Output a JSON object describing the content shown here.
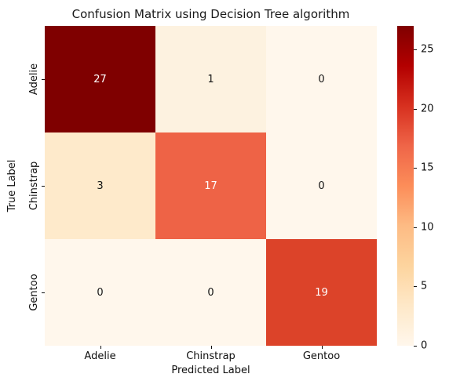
{
  "title": "Confusion Matrix using Decision Tree algorithm",
  "chart_data": {
    "type": "heatmap",
    "title": "Confusion Matrix using Decision Tree algorithm",
    "xlabel": "Predicted Label",
    "ylabel": "True Label",
    "x_categories": [
      "Adelie",
      "Chinstrap",
      "Gentoo"
    ],
    "y_categories": [
      "Adelie",
      "Chinstrap",
      "Gentoo"
    ],
    "matrix": [
      [
        27,
        1,
        0
      ],
      [
        3,
        17,
        0
      ],
      [
        0,
        0,
        19
      ]
    ],
    "vmin": 0,
    "vmax": 27,
    "colormap": "OrRd",
    "grid": false,
    "legend_position": "colorbar-right",
    "cell_colors": [
      [
        "#7f0000",
        "#fdf2e0",
        "#fff7ec"
      ],
      [
        "#feeacb",
        "#ee6346",
        "#fff7ec"
      ],
      [
        "#fff7ec",
        "#fff7ec",
        "#dc4329"
      ]
    ],
    "cell_text_colors": [
      [
        "#ffffff",
        "#151515",
        "#151515"
      ],
      [
        "#151515",
        "#ffffff",
        "#151515"
      ],
      [
        "#151515",
        "#151515",
        "#ffffff"
      ]
    ],
    "colorbar": {
      "ticks": [
        0,
        5,
        10,
        15,
        20,
        25
      ],
      "gradient_stops": [
        "#fff7ec",
        "#fee8c8",
        "#fdd49e",
        "#fdbb84",
        "#fc8d59",
        "#ef6548",
        "#d7301f",
        "#b30000",
        "#7f0000"
      ]
    }
  }
}
